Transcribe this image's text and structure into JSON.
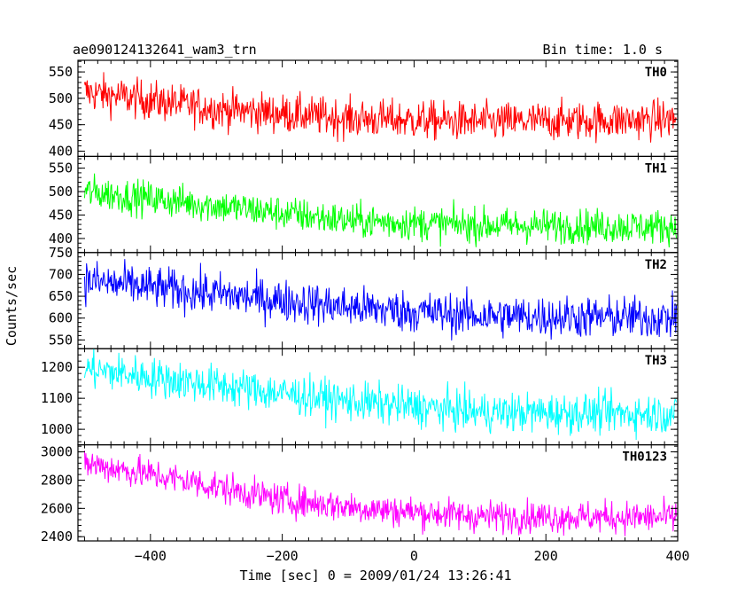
{
  "chart_data": {
    "type": "line",
    "title": "ae090124132641_wam3_trn",
    "subtitle": "Bin time: 1.0 s",
    "xlabel": "Time [sec] 0 = 2009/01/24 13:26:41",
    "ylabel": "Counts/sec",
    "x_range": [
      -510,
      400
    ],
    "x_ticks": [
      -400,
      -200,
      0,
      200,
      400
    ],
    "x_tick_labels": [
      "−400",
      "−200",
      "0",
      "200",
      "400"
    ],
    "x_start": -500,
    "x_end": 398,
    "panels": [
      {
        "name": "TH0",
        "color": "#ff0000",
        "ylim": [
          390,
          572
        ],
        "y_ticks": [
          400,
          450,
          500,
          550
        ],
        "trend": [
          [
            -500,
            512
          ],
          [
            -300,
            480
          ],
          [
            -100,
            462
          ],
          [
            100,
            455
          ],
          [
            398,
            460
          ]
        ],
        "noise": 26
      },
      {
        "name": "TH1",
        "color": "#00ff00",
        "ylim": [
          370,
          575
        ],
        "y_ticks": [
          400,
          450,
          500,
          550
        ],
        "trend": [
          [
            -500,
            500
          ],
          [
            -300,
            470
          ],
          [
            -100,
            438
          ],
          [
            100,
            428
          ],
          [
            398,
            425
          ]
        ],
        "noise": 26
      },
      {
        "name": "TH2",
        "color": "#0000ff",
        "ylim": [
          530,
          750
        ],
        "y_ticks": [
          550,
          600,
          650,
          700,
          750
        ],
        "trend": [
          [
            -500,
            685
          ],
          [
            -300,
            655
          ],
          [
            -100,
            625
          ],
          [
            100,
            605
          ],
          [
            398,
            600
          ]
        ],
        "noise": 34
      },
      {
        "name": "TH3",
        "color": "#00ffff",
        "ylim": [
          950,
          1260
        ],
        "y_ticks": [
          1000,
          1100,
          1200
        ],
        "trend": [
          [
            -500,
            1195
          ],
          [
            -350,
            1155
          ],
          [
            -100,
            1090
          ],
          [
            100,
            1055
          ],
          [
            398,
            1050
          ]
        ],
        "noise": 45
      },
      {
        "name": "TH0123",
        "color": "#ff00ff",
        "ylim": [
          2370,
          3050
        ],
        "y_ticks": [
          2400,
          2600,
          2800,
          3000
        ],
        "trend": [
          [
            -500,
            2920
          ],
          [
            -350,
            2800
          ],
          [
            -200,
            2660
          ],
          [
            -50,
            2590
          ],
          [
            100,
            2545
          ],
          [
            398,
            2535
          ]
        ],
        "noise": 80
      }
    ]
  }
}
